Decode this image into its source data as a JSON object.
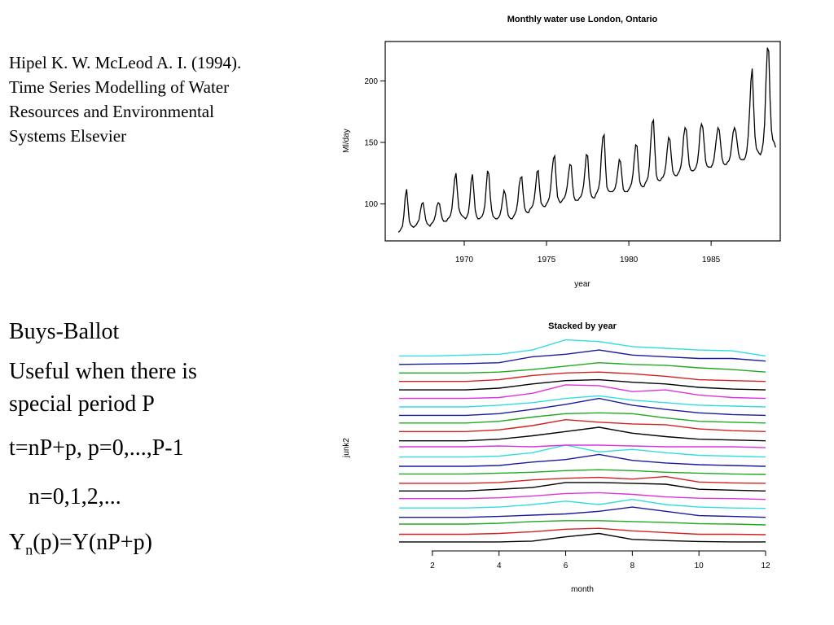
{
  "citation": {
    "lines": [
      "Hipel K. W. McLeod A. I. (1994).",
      "Time Series Modelling of Water",
      "Resources and Environmental",
      "Systems Elsevier"
    ]
  },
  "bullets": {
    "heading": "Buys-Ballot",
    "useful_line1": "Useful when there is",
    "useful_line2": "special period P",
    "formula": "t=nP+p, p=0,...,P-1",
    "n_range": "n=0,1,2,...",
    "yn_prefix": "Y",
    "yn_sub": "n",
    "yn_rest": "(p)=Y(nP+p)"
  },
  "colors": {
    "line": "#000000",
    "palette": [
      "#000000",
      "#d42020",
      "#1faa1f",
      "#1a1a9e",
      "#33dddd",
      "#dd33dd"
    ]
  },
  "chart_data": [
    {
      "type": "line",
      "title": "Monthly water use London, Ontario",
      "xlabel": "year",
      "ylabel": "Ml/day",
      "xlim": [
        1965.2,
        1989.2
      ],
      "ylim": [
        70,
        232
      ],
      "xticks": [
        1970,
        1975,
        1980,
        1985
      ],
      "yticks": [
        100,
        150,
        200
      ],
      "grid": false,
      "start": 1966,
      "frequency": 12,
      "values": [
        77,
        78,
        80,
        82,
        91,
        106,
        112,
        98,
        86,
        83,
        82,
        81,
        82,
        83,
        85,
        87,
        94,
        100,
        101,
        94,
        87,
        84,
        83,
        82,
        84,
        85,
        87,
        91,
        98,
        101,
        100,
        93,
        88,
        86,
        86,
        86,
        88,
        89,
        91,
        96,
        108,
        120,
        125,
        110,
        97,
        93,
        91,
        90,
        89,
        88,
        90,
        93,
        102,
        118,
        124,
        110,
        95,
        90,
        88,
        88,
        89,
        90,
        93,
        99,
        113,
        127,
        124,
        106,
        95,
        90,
        89,
        88,
        88,
        89,
        91,
        96,
        104,
        111,
        108,
        99,
        91,
        89,
        88,
        88,
        90,
        92,
        95,
        102,
        115,
        121,
        122,
        108,
        97,
        94,
        93,
        93,
        96,
        97,
        99,
        104,
        114,
        126,
        127,
        112,
        101,
        99,
        98,
        98,
        100,
        102,
        105,
        113,
        127,
        137,
        139,
        121,
        106,
        103,
        101,
        102,
        104,
        105,
        108,
        114,
        124,
        132,
        131,
        116,
        106,
        103,
        103,
        103,
        105,
        106,
        109,
        115,
        127,
        140,
        139,
        121,
        110,
        106,
        105,
        105,
        108,
        110,
        113,
        120,
        140,
        154,
        156,
        131,
        114,
        111,
        110,
        110,
        110,
        111,
        113,
        118,
        127,
        136,
        134,
        122,
        112,
        110,
        110,
        110,
        112,
        114,
        117,
        124,
        137,
        148,
        147,
        130,
        118,
        115,
        114,
        114,
        117,
        119,
        122,
        131,
        150,
        166,
        168,
        144,
        124,
        120,
        119,
        119,
        121,
        122,
        125,
        132,
        144,
        154,
        152,
        138,
        127,
        124,
        123,
        123,
        125,
        127,
        131,
        140,
        155,
        162,
        160,
        145,
        132,
        128,
        127,
        127,
        128,
        130,
        134,
        144,
        160,
        165,
        162,
        148,
        135,
        131,
        130,
        130,
        130,
        132,
        136,
        145,
        155,
        162,
        160,
        148,
        137,
        133,
        132,
        132,
        134,
        135,
        139,
        148,
        158,
        162,
        159,
        150,
        141,
        137,
        136,
        136,
        136,
        138,
        143,
        155,
        175,
        200,
        210,
        180,
        155,
        145,
        143,
        141,
        140,
        143,
        150,
        165,
        200,
        227,
        224,
        185,
        160,
        152,
        150,
        146
      ]
    },
    {
      "type": "line",
      "title": "Stacked by year",
      "xlabel": "month",
      "ylabel": "junk2",
      "xlim": [
        1,
        12
      ],
      "ylim": [
        0,
        23
      ],
      "xticks": [
        2,
        4,
        6,
        8,
        10,
        12
      ],
      "grid": false,
      "x": [
        1,
        2,
        3,
        4,
        5,
        6,
        7,
        8,
        9,
        10,
        11,
        12
      ],
      "stack_spacing": 1,
      "series": [
        {
          "color": "#000000",
          "values": [
            0.2,
            0.2,
            0.2,
            0.2,
            0.3,
            0.8,
            1.2,
            0.5,
            0.35,
            0.25,
            0.2,
            0.2
          ]
        },
        {
          "color": "#d42020",
          "values": [
            0.1,
            0.1,
            0.1,
            0.2,
            0.4,
            0.7,
            0.8,
            0.5,
            0.3,
            0.1,
            0.1,
            0.05
          ]
        },
        {
          "color": "#1faa1f",
          "values": [
            0.3,
            0.3,
            0.3,
            0.4,
            0.6,
            0.7,
            0.7,
            0.6,
            0.5,
            0.35,
            0.3,
            0.2
          ]
        },
        {
          "color": "#1a1a9e",
          "values": [
            0.1,
            0.1,
            0.1,
            0.2,
            0.35,
            0.5,
            0.8,
            1.3,
            0.8,
            0.3,
            0.2,
            0.1
          ]
        },
        {
          "color": "#33dddd",
          "values": [
            0.2,
            0.2,
            0.2,
            0.3,
            0.6,
            1.0,
            0.6,
            1.2,
            0.6,
            0.3,
            0.2,
            0.15
          ]
        },
        {
          "color": "#dd33dd",
          "values": [
            0.3,
            0.3,
            0.3,
            0.4,
            0.6,
            0.9,
            1.0,
            0.8,
            0.5,
            0.35,
            0.3,
            0.2
          ]
        },
        {
          "color": "#000000",
          "values": [
            0.2,
            0.2,
            0.2,
            0.4,
            0.6,
            1.2,
            1.2,
            1.1,
            1.0,
            0.4,
            0.3,
            0.2
          ]
        },
        {
          "color": "#d42020",
          "values": [
            0.1,
            0.1,
            0.1,
            0.2,
            0.5,
            0.7,
            0.8,
            0.6,
            0.9,
            0.25,
            0.15,
            0.1
          ]
        },
        {
          "color": "#1faa1f",
          "values": [
            0.2,
            0.2,
            0.2,
            0.3,
            0.4,
            0.6,
            0.7,
            0.6,
            0.4,
            0.3,
            0.2,
            0.15
          ]
        },
        {
          "color": "#1a1a9e",
          "values": [
            0.1,
            0.1,
            0.1,
            0.2,
            0.6,
            0.9,
            1.5,
            0.8,
            0.5,
            0.3,
            0.2,
            0.1
          ]
        },
        {
          "color": "#33dddd",
          "values": [
            0.2,
            0.2,
            0.2,
            0.3,
            0.7,
            1.6,
            0.8,
            1.1,
            0.7,
            0.4,
            0.3,
            0.2
          ]
        },
        {
          "color": "#dd33dd",
          "values": [
            0.4,
            0.4,
            0.4,
            0.5,
            0.4,
            0.6,
            0.6,
            0.5,
            0.4,
            0.4,
            0.4,
            0.3
          ]
        },
        {
          "color": "#000000",
          "values": [
            0.1,
            0.1,
            0.1,
            0.3,
            0.7,
            1.2,
            1.7,
            1.0,
            0.6,
            0.3,
            0.2,
            0.1
          ]
        },
        {
          "color": "#d42020",
          "values": [
            0.2,
            0.2,
            0.2,
            0.4,
            0.9,
            1.6,
            1.3,
            1.1,
            1.0,
            0.5,
            0.3,
            0.2
          ]
        },
        {
          "color": "#1faa1f",
          "values": [
            0.2,
            0.2,
            0.2,
            0.4,
            0.9,
            1.3,
            1.4,
            1.3,
            0.8,
            0.4,
            0.3,
            0.2
          ]
        },
        {
          "color": "#1a1a9e",
          "values": [
            0.1,
            0.1,
            0.1,
            0.3,
            0.8,
            1.4,
            2.1,
            1.3,
            0.8,
            0.4,
            0.2,
            0.1
          ]
        },
        {
          "color": "#33dddd",
          "values": [
            0.1,
            0.1,
            0.1,
            0.3,
            0.6,
            1.1,
            1.4,
            0.9,
            0.6,
            0.3,
            0.2,
            0.1
          ]
        },
        {
          "color": "#dd33dd",
          "values": [
            0.1,
            0.1,
            0.1,
            0.2,
            0.7,
            1.7,
            1.6,
            0.9,
            1.1,
            0.5,
            0.2,
            0.1
          ]
        },
        {
          "color": "#000000",
          "values": [
            0.1,
            0.1,
            0.1,
            0.3,
            0.8,
            1.2,
            1.3,
            1.0,
            0.8,
            0.4,
            0.2,
            0.1
          ]
        },
        {
          "color": "#d42020",
          "values": [
            0.1,
            0.1,
            0.1,
            0.3,
            0.8,
            1.1,
            1.2,
            1.0,
            0.7,
            0.3,
            0.2,
            0.1
          ]
        },
        {
          "color": "#1faa1f",
          "values": [
            0.1,
            0.1,
            0.1,
            0.2,
            0.5,
            0.9,
            1.3,
            1.1,
            1.0,
            0.7,
            0.5,
            0.2
          ]
        },
        {
          "color": "#1a1a9e",
          "values": [
            0.1,
            0.15,
            0.2,
            0.3,
            1.0,
            1.3,
            1.8,
            1.2,
            1.0,
            0.8,
            0.8,
            0.5
          ]
        },
        {
          "color": "#33dddd",
          "values": [
            0.1,
            0.1,
            0.2,
            0.3,
            0.8,
            2.0,
            1.8,
            1.2,
            1.0,
            0.8,
            0.7,
            0.1
          ]
        }
      ]
    }
  ]
}
